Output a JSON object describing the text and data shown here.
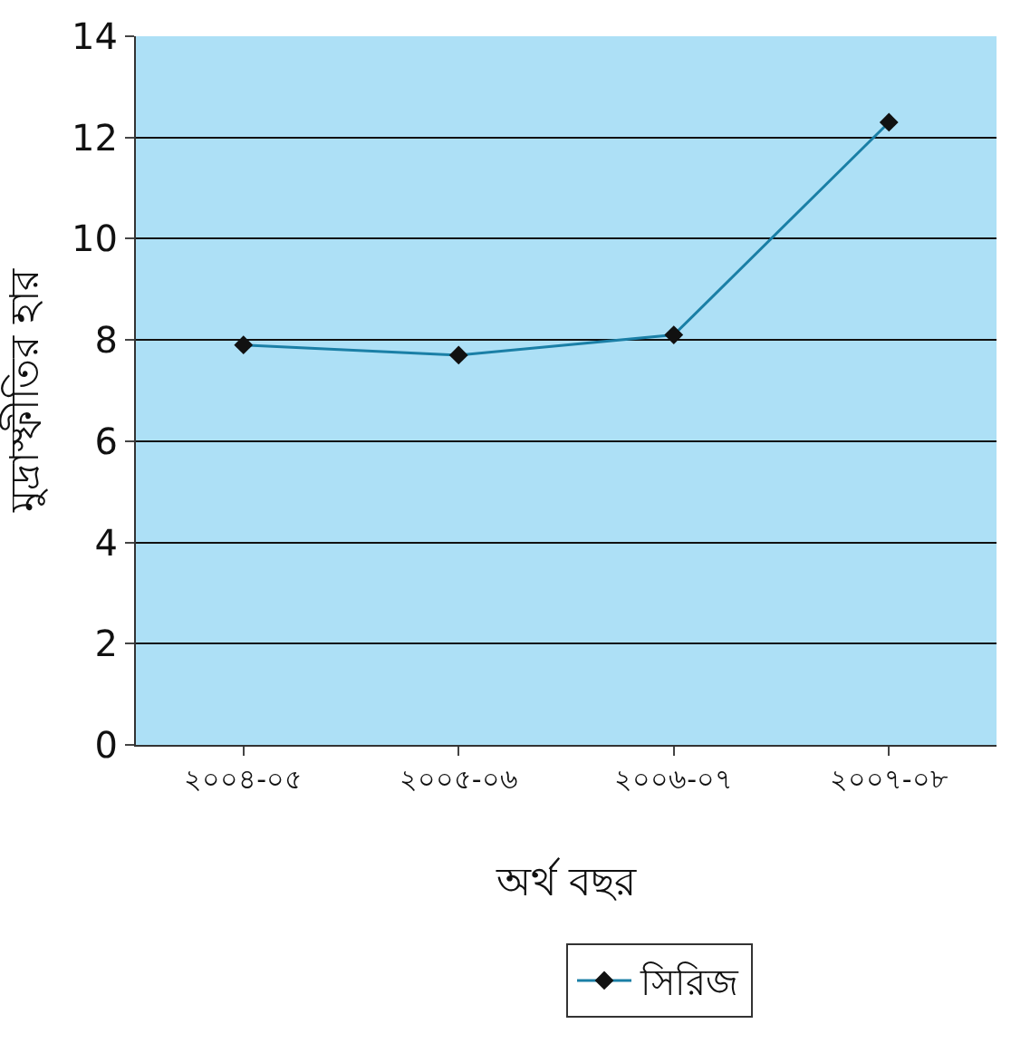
{
  "chart_data": {
    "type": "line",
    "xlabel": "অর্থ বছর",
    "ylabel": "মুদ্রাস্ফীতির হার",
    "categories": [
      "২০০৪-০৫",
      "২০০৫-০৬",
      "২০০৬-০৭",
      "২০০৭-০৮"
    ],
    "series": [
      {
        "name": "সিরিজ",
        "color": "#1a7fa6",
        "values": [
          7.9,
          7.7,
          8.1,
          12.3
        ]
      }
    ],
    "ylim": [
      0,
      14
    ],
    "yticks": [
      0,
      2,
      4,
      6,
      8,
      10,
      12,
      14
    ],
    "grid": "y",
    "legend": "bottom",
    "marker": "diamond",
    "line_style": "solid"
  }
}
